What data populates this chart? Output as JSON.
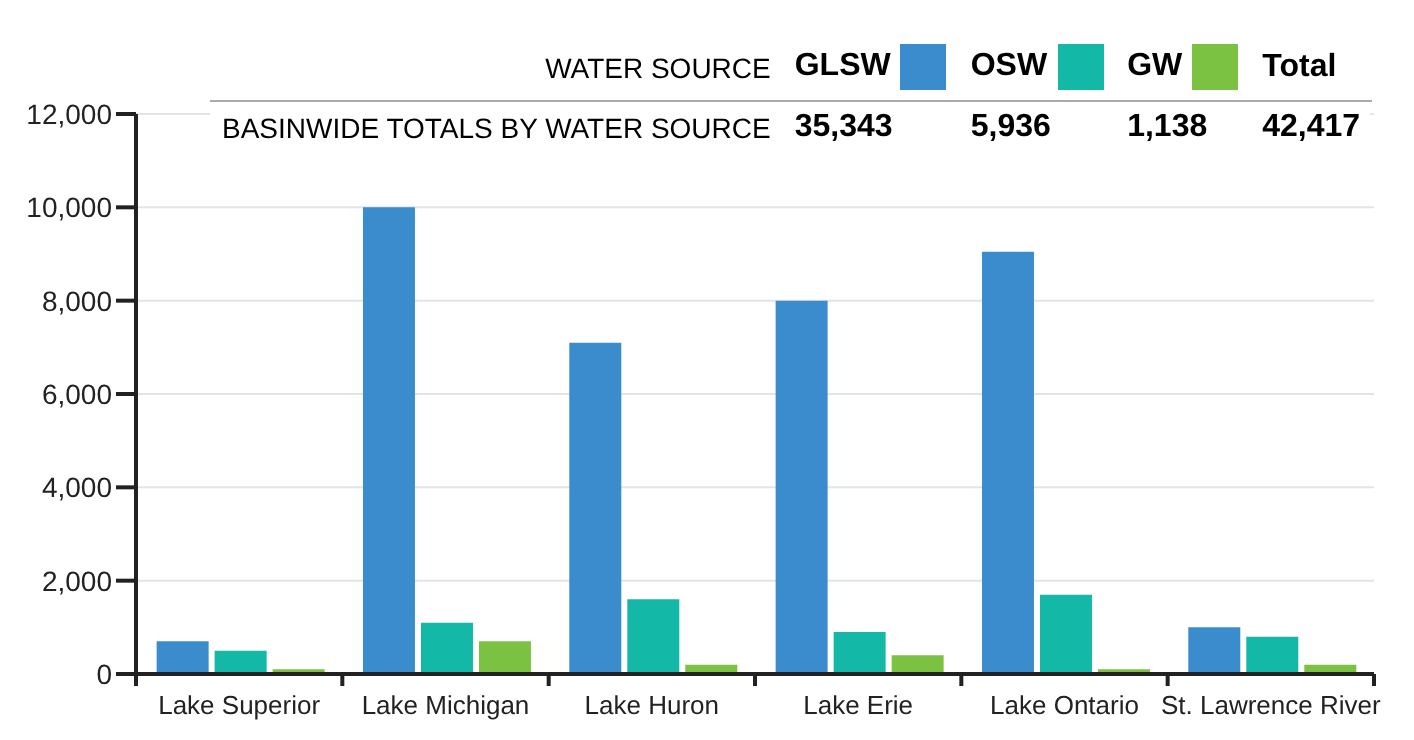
{
  "chart_data": {
    "type": "bar",
    "categories": [
      "Lake Superior",
      "Lake Michigan",
      "Lake Huron",
      "Lake Erie",
      "Lake Ontario",
      "St. Lawrence River"
    ],
    "series": [
      {
        "name": "GLSW",
        "color": "#3a8ccc",
        "values": [
          700,
          10000,
          7100,
          8000,
          9050,
          1000
        ]
      },
      {
        "name": "OSW",
        "color": "#14b8a6",
        "values": [
          500,
          1100,
          1600,
          900,
          1700,
          800
        ]
      },
      {
        "name": "GW",
        "color": "#7cc242",
        "values": [
          100,
          700,
          200,
          400,
          100,
          200
        ]
      }
    ],
    "ylim": [
      0,
      12000
    ],
    "yticks": [
      0,
      {
        "value": 2000,
        "label": "2,000"
      },
      {
        "value": 4000,
        "label": "4,000"
      },
      {
        "value": 6000,
        "label": "6,000"
      },
      {
        "value": 8000,
        "label": "8,000"
      },
      {
        "value": 10000,
        "label": "10,000"
      },
      {
        "value": 12000,
        "label": "12,000"
      }
    ],
    "grid": "y",
    "legend": "top",
    "annotations": [
      "WATER SOURCE",
      "BASINWIDE TOTALS BY WATER SOURCE",
      "35,343",
      "5,936",
      "1,138",
      "Total",
      "42,417"
    ]
  }
}
